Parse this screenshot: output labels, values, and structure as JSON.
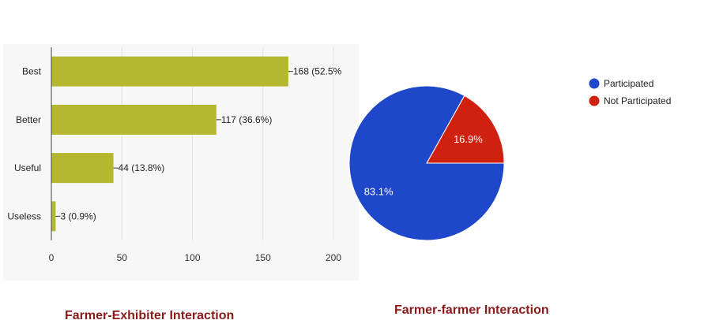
{
  "chart_data": [
    {
      "type": "bar",
      "orientation": "horizontal",
      "title": "Farmer-Exhibiter Interaction",
      "categories": [
        "Best",
        "Better",
        "Useful",
        "Useless"
      ],
      "values": [
        168,
        117,
        44,
        3
      ],
      "data_labels": [
        "168 (52.5%",
        "117 (36.6%)",
        "44 (13.8%)",
        "3 (0.9%)"
      ],
      "xlim": [
        0,
        200
      ],
      "xticks": [
        "0",
        "50",
        "100",
        "150",
        "200"
      ],
      "grid": true,
      "color": "#b5b82e"
    },
    {
      "type": "pie",
      "title": "Farmer-farmer Interaction",
      "slices": [
        {
          "name": "Participated",
          "value": 83.1,
          "label": "83.1%",
          "color": "#1f47c9"
        },
        {
          "name": "Not Participated",
          "value": 16.9,
          "label": "16.9%",
          "color": "#d0210f"
        }
      ],
      "legend_position": "right"
    }
  ]
}
